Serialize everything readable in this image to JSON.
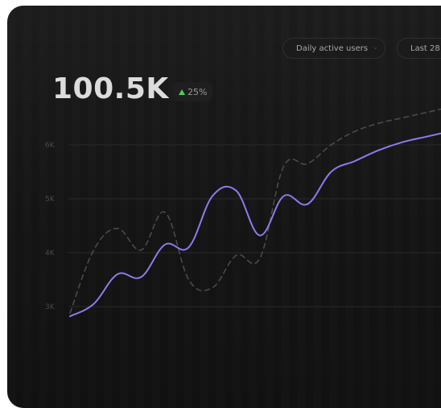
{
  "controls": {
    "metric_label": "Daily active users",
    "range_label": "Last 28"
  },
  "summary": {
    "value": "100.5K",
    "change": "25%",
    "change_color": "#3fd15a"
  },
  "colors": {
    "primary_line": "#8b7cf0",
    "comparison_line": "#4a4a4a",
    "gridline": "#2a2a2a"
  },
  "chart_data": {
    "type": "line",
    "ylim": [
      2800,
      6200
    ],
    "yticks": [
      {
        "value": 3000,
        "label": "3K"
      },
      {
        "value": 4000,
        "label": "4K"
      },
      {
        "value": 5000,
        "label": "5K"
      },
      {
        "value": 6000,
        "label": "6K"
      }
    ],
    "x": [
      0,
      1,
      2,
      3,
      4,
      5,
      6,
      7,
      8,
      9,
      10,
      11,
      12,
      13,
      14,
      15,
      16
    ],
    "series": [
      {
        "key": "current",
        "style": "solid",
        "values": [
          2820,
          3050,
          3600,
          3550,
          4150,
          4100,
          5050,
          5150,
          4320,
          5050,
          4900,
          5500,
          5700,
          5900,
          6050,
          6150,
          6250
        ]
      },
      {
        "key": "previous",
        "style": "dashed",
        "values": [
          2880,
          4050,
          4450,
          4050,
          4750,
          3500,
          3350,
          3950,
          3900,
          5600,
          5650,
          6000,
          6250,
          6400,
          6500,
          6600,
          6700
        ]
      }
    ]
  }
}
